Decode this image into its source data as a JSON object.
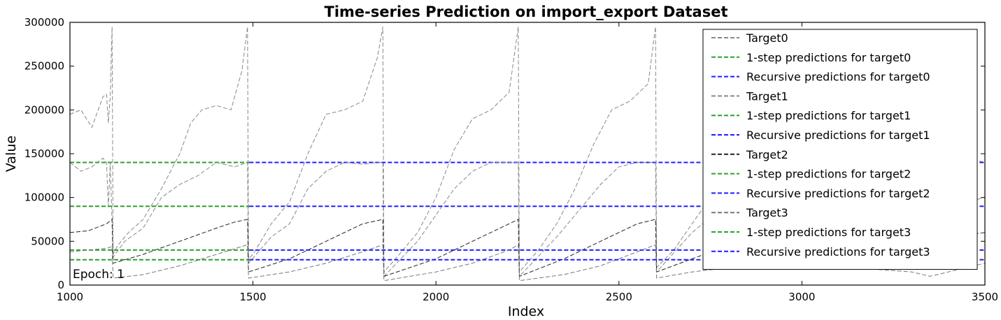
{
  "chart_data": {
    "type": "line",
    "title": "Time-series Prediction on import_export Dataset",
    "xlabel": "Index",
    "ylabel": "Value",
    "xlim": [
      1000,
      3500
    ],
    "ylim": [
      0,
      300000
    ],
    "x_ticks": [
      "1000",
      "1500",
      "2000",
      "2500",
      "3000",
      "3500"
    ],
    "y_ticks": [
      "0",
      "50000",
      "100000",
      "150000",
      "200000",
      "250000",
      "300000"
    ],
    "annotation": "Epoch: 1",
    "grid": false,
    "legend_position": "top-right",
    "targets": [
      {
        "name": "Target0",
        "color": "#888888",
        "dash": "dashed",
        "range": [
          1000,
          3500
        ],
        "points": [
          [
            1000,
            195000
          ],
          [
            1030,
            200000
          ],
          [
            1060,
            180000
          ],
          [
            1090,
            215000
          ],
          [
            1100,
            218000
          ],
          [
            1105,
            185000
          ],
          [
            1110,
            215000
          ],
          [
            1115,
            295000
          ],
          [
            1118,
            35000
          ],
          [
            1130,
            45000
          ],
          [
            1160,
            60000
          ],
          [
            1200,
            75000
          ],
          [
            1250,
            110000
          ],
          [
            1300,
            150000
          ],
          [
            1330,
            185000
          ],
          [
            1360,
            200000
          ],
          [
            1400,
            205000
          ],
          [
            1440,
            200000
          ],
          [
            1470,
            245000
          ],
          [
            1485,
            295000
          ],
          [
            1488,
            30000
          ],
          [
            1500,
            35000
          ],
          [
            1550,
            70000
          ],
          [
            1600,
            95000
          ],
          [
            1650,
            150000
          ],
          [
            1700,
            195000
          ],
          [
            1750,
            200000
          ],
          [
            1800,
            210000
          ],
          [
            1840,
            260000
          ],
          [
            1855,
            295000
          ],
          [
            1858,
            15000
          ],
          [
            1900,
            35000
          ],
          [
            1950,
            60000
          ],
          [
            2000,
            100000
          ],
          [
            2050,
            155000
          ],
          [
            2100,
            190000
          ],
          [
            2150,
            200000
          ],
          [
            2200,
            220000
          ],
          [
            2225,
            295000
          ],
          [
            2228,
            15000
          ],
          [
            2280,
            40000
          ],
          [
            2330,
            70000
          ],
          [
            2380,
            110000
          ],
          [
            2430,
            160000
          ],
          [
            2480,
            200000
          ],
          [
            2530,
            210000
          ],
          [
            2580,
            230000
          ],
          [
            2600,
            295000
          ],
          [
            2603,
            20000
          ],
          [
            2650,
            40000
          ],
          [
            2700,
            70000
          ],
          [
            2750,
            100000
          ],
          [
            2800,
            130000
          ],
          [
            2900,
            165000
          ],
          [
            2970,
            200000
          ],
          [
            3000,
            180000
          ],
          [
            3100,
            160000
          ],
          [
            3200,
            175000
          ],
          [
            3300,
            160000
          ],
          [
            3350,
            185000
          ],
          [
            3400,
            165000
          ],
          [
            3450,
            145000
          ],
          [
            3500,
            140000
          ]
        ]
      },
      {
        "name": "1-step predictions for target0",
        "color": "#2ca02c",
        "dash": "dashed",
        "range": [
          1000,
          1490
        ],
        "value": 140000
      },
      {
        "name": "Recursive predictions for target0",
        "color": "#1f1fff",
        "dash": "dashed",
        "range": [
          1490,
          3500
        ],
        "value": 140000
      },
      {
        "name": "Target1",
        "color": "#888888",
        "dash": "dashed",
        "range": [
          1000,
          3500
        ],
        "points": [
          [
            1000,
            140000
          ],
          [
            1030,
            130000
          ],
          [
            1060,
            135000
          ],
          [
            1090,
            145000
          ],
          [
            1100,
            140000
          ],
          [
            1105,
            90000
          ],
          [
            1110,
            140000
          ],
          [
            1118,
            32000
          ],
          [
            1150,
            50000
          ],
          [
            1200,
            65000
          ],
          [
            1250,
            100000
          ],
          [
            1300,
            115000
          ],
          [
            1350,
            125000
          ],
          [
            1400,
            140000
          ],
          [
            1450,
            135000
          ],
          [
            1485,
            140000
          ],
          [
            1488,
            25000
          ],
          [
            1550,
            55000
          ],
          [
            1600,
            70000
          ],
          [
            1650,
            110000
          ],
          [
            1700,
            130000
          ],
          [
            1750,
            140000
          ],
          [
            1800,
            138000
          ],
          [
            1840,
            140000
          ],
          [
            1855,
            140000
          ],
          [
            1858,
            10000
          ],
          [
            1950,
            50000
          ],
          [
            2000,
            80000
          ],
          [
            2050,
            110000
          ],
          [
            2100,
            130000
          ],
          [
            2150,
            140000
          ],
          [
            2200,
            140000
          ],
          [
            2225,
            140000
          ],
          [
            2228,
            10000
          ],
          [
            2330,
            55000
          ],
          [
            2400,
            90000
          ],
          [
            2450,
            115000
          ],
          [
            2500,
            135000
          ],
          [
            2550,
            140000
          ],
          [
            2600,
            140000
          ],
          [
            2603,
            15000
          ],
          [
            2700,
            60000
          ],
          [
            2800,
            95000
          ],
          [
            2900,
            110000
          ],
          [
            3000,
            100000
          ],
          [
            3100,
            80000
          ],
          [
            3200,
            75000
          ],
          [
            3300,
            70000
          ],
          [
            3400,
            90000
          ],
          [
            3500,
            100000
          ]
        ]
      },
      {
        "name": "1-step predictions for target1",
        "color": "#2ca02c",
        "dash": "dashed",
        "range": [
          1000,
          1490
        ],
        "value": 90000
      },
      {
        "name": "Recursive predictions for target1",
        "color": "#1f1fff",
        "dash": "dashed",
        "range": [
          1490,
          3500
        ],
        "value": 90000
      },
      {
        "name": "Target2",
        "color": "#222222",
        "dash": "dashed",
        "range": [
          1000,
          3500
        ],
        "points": [
          [
            1000,
            60000
          ],
          [
            1050,
            62000
          ],
          [
            1100,
            70000
          ],
          [
            1115,
            75000
          ],
          [
            1118,
            25000
          ],
          [
            1200,
            35000
          ],
          [
            1300,
            50000
          ],
          [
            1400,
            65000
          ],
          [
            1450,
            72000
          ],
          [
            1485,
            75000
          ],
          [
            1488,
            15000
          ],
          [
            1600,
            30000
          ],
          [
            1700,
            50000
          ],
          [
            1800,
            70000
          ],
          [
            1855,
            75000
          ],
          [
            1858,
            10000
          ],
          [
            2000,
            30000
          ],
          [
            2100,
            50000
          ],
          [
            2200,
            70000
          ],
          [
            2225,
            75000
          ],
          [
            2228,
            10000
          ],
          [
            2350,
            30000
          ],
          [
            2450,
            50000
          ],
          [
            2550,
            70000
          ],
          [
            2600,
            75000
          ],
          [
            2603,
            15000
          ],
          [
            2700,
            30000
          ],
          [
            2800,
            45000
          ],
          [
            2900,
            55000
          ],
          [
            3000,
            48000
          ],
          [
            3100,
            45000
          ],
          [
            3200,
            42000
          ],
          [
            3300,
            40000
          ],
          [
            3400,
            55000
          ],
          [
            3500,
            60000
          ]
        ]
      },
      {
        "name": "1-step predictions for target2",
        "color": "#2ca02c",
        "dash": "dashed",
        "range": [
          1000,
          1490
        ],
        "value": 40000
      },
      {
        "name": "Recursive predictions for target2",
        "color": "#1f1fff",
        "dash": "dashed",
        "range": [
          1490,
          3500
        ],
        "value": 40000
      },
      {
        "name": "Target3",
        "color": "#777777",
        "dash": "dashed",
        "range": [
          1000,
          3500
        ],
        "points": [
          [
            1000,
            38000
          ],
          [
            1050,
            40000
          ],
          [
            1100,
            42000
          ],
          [
            1115,
            44000
          ],
          [
            1118,
            8000
          ],
          [
            1200,
            12000
          ],
          [
            1300,
            22000
          ],
          [
            1400,
            35000
          ],
          [
            1485,
            46000
          ],
          [
            1488,
            8000
          ],
          [
            1600,
            15000
          ],
          [
            1700,
            25000
          ],
          [
            1800,
            38000
          ],
          [
            1855,
            46000
          ],
          [
            1858,
            5000
          ],
          [
            2000,
            15000
          ],
          [
            2100,
            25000
          ],
          [
            2200,
            40000
          ],
          [
            2225,
            46000
          ],
          [
            2228,
            5000
          ],
          [
            2350,
            12000
          ],
          [
            2450,
            22000
          ],
          [
            2550,
            38000
          ],
          [
            2600,
            46000
          ],
          [
            2603,
            8000
          ],
          [
            2700,
            15000
          ],
          [
            2800,
            20000
          ],
          [
            2900,
            25000
          ],
          [
            3000,
            22000
          ],
          [
            3100,
            20000
          ],
          [
            3200,
            18000
          ],
          [
            3300,
            15000
          ],
          [
            3350,
            10000
          ],
          [
            3400,
            15000
          ],
          [
            3500,
            25000
          ]
        ]
      },
      {
        "name": "1-step predictions for target3",
        "color": "#2ca02c",
        "dash": "dashed",
        "range": [
          1000,
          1490
        ],
        "value": 29000
      },
      {
        "name": "Recursive predictions for target3",
        "color": "#1f1fff",
        "dash": "dashed",
        "range": [
          1490,
          3500
        ],
        "value": 29000
      }
    ]
  }
}
